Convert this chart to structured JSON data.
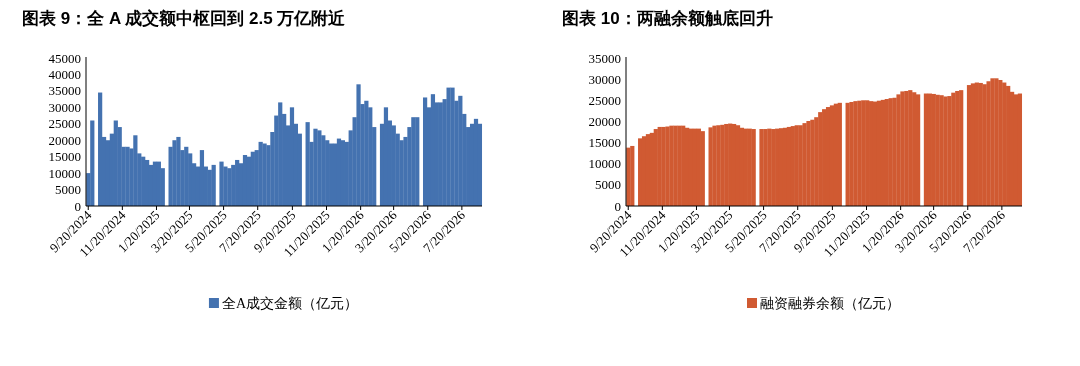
{
  "chart_data": [
    {
      "type": "bar",
      "title": "图表 9：全 A 成交额中枢回到 2.5 万亿附近",
      "legend": "bottom",
      "x": [
        "2024-09-20",
        "2024-09-27",
        "2024-10-04",
        "2024-10-11",
        "2024-10-18",
        "2024-10-25",
        "2024-11-01",
        "2024-11-08",
        "2024-11-15",
        "2024-11-22",
        "2024-11-29",
        "2024-12-06",
        "2024-12-13",
        "2024-12-20",
        "2024-12-27",
        "2025-01-03",
        "2025-01-10",
        "2025-01-17",
        "2025-01-24",
        "2025-01-31",
        "2025-02-07",
        "2025-02-14",
        "2025-02-21",
        "2025-02-28",
        "2025-03-07",
        "2025-03-14",
        "2025-03-21",
        "2025-03-28",
        "2025-04-04",
        "2025-04-11",
        "2025-04-18",
        "2025-04-25",
        "2025-05-02",
        "2025-05-09",
        "2025-05-16",
        "2025-05-23",
        "2025-05-30",
        "2025-06-06",
        "2025-06-13",
        "2025-06-20",
        "2025-06-27",
        "2025-07-04",
        "2025-07-11",
        "2025-07-18",
        "2025-07-25",
        "2025-08-01",
        "2025-08-08",
        "2025-08-15",
        "2025-08-22",
        "2025-08-29",
        "2025-09-05",
        "2025-09-12",
        "2025-09-19",
        "2025-09-26",
        "2025-10-03",
        "2025-10-10",
        "2025-10-17",
        "2025-10-24",
        "2025-10-31",
        "2025-11-07",
        "2025-11-14",
        "2025-11-21",
        "2025-11-28",
        "2025-12-05",
        "2025-12-12",
        "2025-12-19",
        "2025-12-26",
        "2026-01-02",
        "2026-01-09",
        "2026-01-16",
        "2026-01-23",
        "2026-01-30",
        "2026-02-06",
        "2026-02-13",
        "2026-02-20",
        "2026-02-27",
        "2026-03-06",
        "2026-03-13",
        "2026-03-20",
        "2026-03-27",
        "2026-04-03",
        "2026-04-10",
        "2026-04-17",
        "2026-04-24",
        "2026-05-01",
        "2026-05-08",
        "2026-05-15",
        "2026-05-22",
        "2026-05-29",
        "2026-06-05",
        "2026-06-12",
        "2026-06-19",
        "2026-06-26",
        "2026-07-03",
        "2026-07-10",
        "2026-07-17",
        "2026-07-24",
        "2026-07-31",
        "2026-08-07",
        "2026-08-14",
        "2026-08-21"
      ],
      "series": [
        {
          "name": "全A成交金额（亿元）",
          "color": "#4472b0",
          "values": [
            10000,
            26000,
            null,
            34500,
            21000,
            20000,
            22000,
            26000,
            24000,
            18000,
            18000,
            17500,
            21500,
            16000,
            15000,
            14000,
            12500,
            13500,
            13500,
            11500,
            null,
            18000,
            20000,
            21000,
            17000,
            18000,
            16000,
            13000,
            12000,
            17000,
            12000,
            11000,
            12500,
            null,
            13500,
            12000,
            11500,
            12500,
            14000,
            13000,
            15500,
            15000,
            16500,
            17000,
            19500,
            19000,
            18500,
            22500,
            27500,
            31500,
            28000,
            24500,
            30000,
            25000,
            22000,
            null,
            25500,
            19500,
            23500,
            23000,
            21500,
            20000,
            19000,
            19000,
            20500,
            20000,
            19500,
            23000,
            27000,
            37000,
            31000,
            32000,
            30000,
            24000,
            null,
            25000,
            30000,
            26000,
            24500,
            22000,
            20000,
            21000,
            24000,
            27000,
            27000,
            null,
            33000,
            30000,
            34000,
            31500,
            31500,
            32500,
            36000,
            36000,
            32000,
            33500,
            28000,
            24000,
            25000,
            26500,
            25000
          ]
        }
      ],
      "xlim": [
        "2024-09-16",
        "2026-08-25"
      ],
      "xticks": [
        {
          "value": "2024-09-20",
          "label": "9/20/2024"
        },
        {
          "value": "2024-11-20",
          "label": "11/20/2024"
        },
        {
          "value": "2025-01-20",
          "label": "1/20/2025"
        },
        {
          "value": "2025-03-20",
          "label": "3/20/2025"
        },
        {
          "value": "2025-05-20",
          "label": "5/20/2025"
        },
        {
          "value": "2025-07-20",
          "label": "7/20/2025"
        },
        {
          "value": "2025-09-20",
          "label": "9/20/2025"
        },
        {
          "value": "2025-11-20",
          "label": "11/20/2025"
        },
        {
          "value": "2026-01-20",
          "label": "1/20/2026"
        },
        {
          "value": "2026-03-20",
          "label": "3/20/2026"
        },
        {
          "value": "2026-05-20",
          "label": "5/20/2026"
        },
        {
          "value": "2026-07-20",
          "label": "7/20/2026"
        }
      ],
      "ylim": [
        0,
        45000
      ],
      "yticks": [
        0,
        5000,
        10000,
        15000,
        20000,
        25000,
        30000,
        35000,
        40000,
        45000
      ]
    },
    {
      "type": "bar",
      "title": "图表 10：两融余额触底回升",
      "legend": "bottom",
      "x": [
        "2024-09-20",
        "2024-09-27",
        "2024-10-04",
        "2024-10-11",
        "2024-10-18",
        "2024-10-25",
        "2024-11-01",
        "2024-11-08",
        "2024-11-15",
        "2024-11-22",
        "2024-11-29",
        "2024-12-06",
        "2024-12-13",
        "2024-12-20",
        "2024-12-27",
        "2025-01-03",
        "2025-01-10",
        "2025-01-17",
        "2025-01-24",
        "2025-01-31",
        "2025-02-07",
        "2025-02-14",
        "2025-02-21",
        "2025-02-28",
        "2025-03-07",
        "2025-03-14",
        "2025-03-21",
        "2025-03-28",
        "2025-04-04",
        "2025-04-11",
        "2025-04-18",
        "2025-04-25",
        "2025-05-02",
        "2025-05-09",
        "2025-05-16",
        "2025-05-23",
        "2025-05-30",
        "2025-06-06",
        "2025-06-13",
        "2025-06-20",
        "2025-06-27",
        "2025-07-04",
        "2025-07-11",
        "2025-07-18",
        "2025-07-25",
        "2025-08-01",
        "2025-08-08",
        "2025-08-15",
        "2025-08-22",
        "2025-08-29",
        "2025-09-05",
        "2025-09-12",
        "2025-09-19",
        "2025-09-26",
        "2025-10-03",
        "2025-10-10",
        "2025-10-17",
        "2025-10-24",
        "2025-10-31",
        "2025-11-07",
        "2025-11-14",
        "2025-11-21",
        "2025-11-28",
        "2025-12-05",
        "2025-12-12",
        "2025-12-19",
        "2025-12-26",
        "2026-01-02",
        "2026-01-09",
        "2026-01-16",
        "2026-01-23",
        "2026-01-30",
        "2026-02-06",
        "2026-02-13",
        "2026-02-20",
        "2026-02-27",
        "2026-03-06",
        "2026-03-13",
        "2026-03-20",
        "2026-03-27",
        "2026-04-03",
        "2026-04-10",
        "2026-04-17",
        "2026-04-24",
        "2026-05-01",
        "2026-05-08",
        "2026-05-15",
        "2026-05-22",
        "2026-05-29",
        "2026-06-05",
        "2026-06-12",
        "2026-06-19",
        "2026-06-26",
        "2026-07-03",
        "2026-07-10",
        "2026-07-17",
        "2026-07-24",
        "2026-07-31",
        "2026-08-07",
        "2026-08-14",
        "2026-08-21"
      ],
      "series": [
        {
          "name": "融资融券余额（亿元）",
          "color": "#d05a32",
          "values": [
            13800,
            14200,
            null,
            16000,
            16500,
            17000,
            17300,
            18200,
            18700,
            18700,
            18800,
            19000,
            19000,
            19000,
            19000,
            18500,
            18300,
            18300,
            18300,
            17700,
            null,
            18600,
            19000,
            19100,
            19200,
            19400,
            19500,
            19400,
            19100,
            18500,
            18300,
            18300,
            18200,
            null,
            18200,
            18200,
            18300,
            18200,
            18300,
            18400,
            18500,
            18700,
            18900,
            19100,
            19100,
            19600,
            20100,
            20400,
            21000,
            22200,
            22900,
            23400,
            23800,
            24200,
            24400,
            null,
            24400,
            24600,
            24800,
            24900,
            25000,
            25000,
            24800,
            24700,
            24900,
            25100,
            25300,
            25500,
            25600,
            26400,
            27100,
            27200,
            27400,
            26900,
            26400,
            null,
            26600,
            26600,
            26500,
            26300,
            26200,
            25900,
            26000,
            26800,
            27200,
            27400,
            null,
            28600,
            29000,
            29200,
            29100,
            28800,
            29500,
            30200,
            30200,
            29800,
            29200,
            28400,
            27000,
            26400,
            26600
          ]
        }
      ],
      "xlim": [
        "2024-09-16",
        "2026-08-25"
      ],
      "xticks": [
        {
          "value": "2024-09-20",
          "label": "9/20/2024"
        },
        {
          "value": "2024-11-20",
          "label": "11/20/2024"
        },
        {
          "value": "2025-01-20",
          "label": "1/20/2025"
        },
        {
          "value": "2025-03-20",
          "label": "3/20/2025"
        },
        {
          "value": "2025-05-20",
          "label": "5/20/2025"
        },
        {
          "value": "2025-07-20",
          "label": "7/20/2025"
        },
        {
          "value": "2025-09-20",
          "label": "9/20/2025"
        },
        {
          "value": "2025-11-20",
          "label": "11/20/2025"
        },
        {
          "value": "2026-01-20",
          "label": "1/20/2026"
        },
        {
          "value": "2026-03-20",
          "label": "3/20/2026"
        },
        {
          "value": "2026-05-20",
          "label": "5/20/2026"
        },
        {
          "value": "2026-07-20",
          "label": "7/20/2026"
        }
      ],
      "ylim": [
        0,
        35000
      ],
      "yticks": [
        0,
        5000,
        10000,
        15000,
        20000,
        25000,
        30000,
        35000
      ]
    }
  ]
}
